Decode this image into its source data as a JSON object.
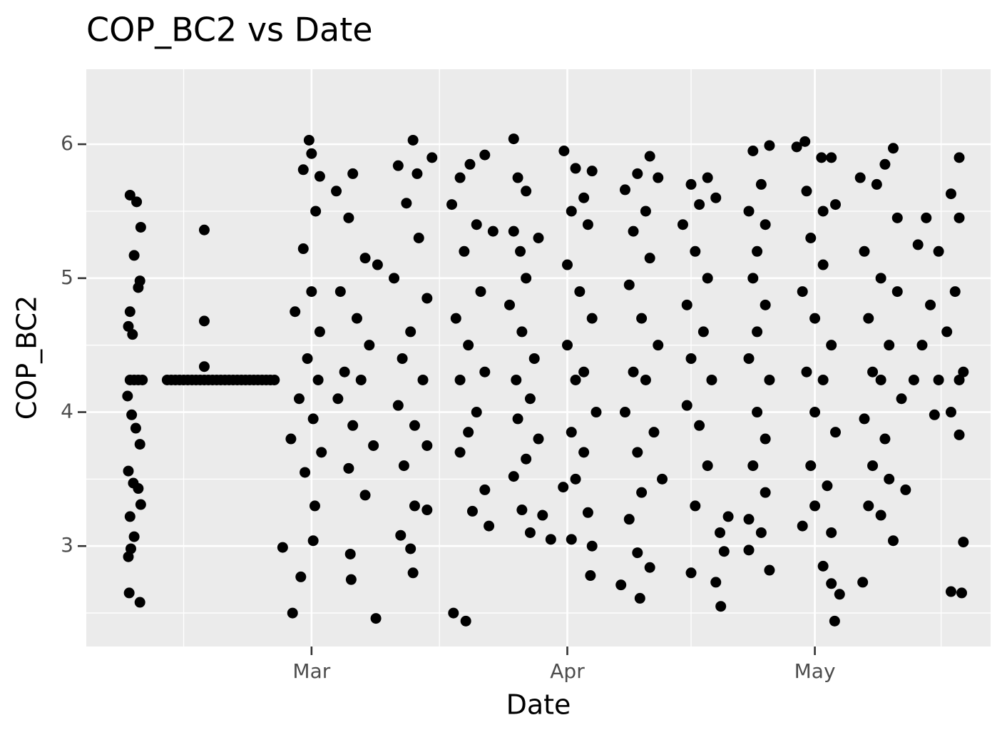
{
  "chart_data": {
    "type": "scatter",
    "title": "COP_BC2 vs Date",
    "x_label": "Date",
    "y_label": "COP_BC2",
    "color": "#000000",
    "x": [
      -22,
      -21.2,
      -20.7,
      -21.5,
      -22,
      -21,
      -20.8,
      -22.2,
      -21.7,
      -22,
      -21,
      -20.5,
      -21.5,
      -22.3,
      -21.8,
      -21.3,
      -20.8,
      -22.2,
      -21.6,
      -21,
      -20.7,
      -22,
      -21.5,
      -21.9,
      -22.2,
      -22.1,
      -20.8,
      -17.5,
      -17,
      -16.5,
      -16,
      -15.5,
      -15,
      -14.5,
      -14,
      -13.5,
      -13,
      -12.5,
      -12,
      -11.5,
      -11,
      -10.5,
      -10,
      -9.5,
      -9,
      -8.5,
      -8,
      -7.5,
      -7,
      -6.5,
      -6,
      -5.5,
      -5,
      -4.5,
      -13,
      -13,
      -13,
      -0.3,
      0,
      -1,
      1,
      0.5,
      -1,
      0,
      -2,
      1,
      -0.5,
      0.8,
      -1.5,
      0.2,
      -2.5,
      1.2,
      -0.8,
      0.4,
      -3.5,
      -1.3,
      -2.3,
      0.2,
      5,
      3,
      4.5,
      6.5,
      3.5,
      5.5,
      7,
      4,
      6,
      3.2,
      5,
      7.5,
      4.5,
      6.5,
      4.7,
      4.8,
      7.8,
      8,
      12.3,
      10.5,
      12.8,
      14.6,
      11.5,
      13,
      10,
      14,
      12,
      11,
      13.5,
      10.5,
      12.5,
      14,
      11.2,
      12.5,
      10.8,
      12,
      12.3,
      14,
      18,
      19.2,
      21,
      17,
      20,
      22,
      18.5,
      20.5,
      17.5,
      19,
      21,
      18,
      20,
      19,
      18,
      21,
      19.5,
      17.2,
      18.7,
      21.5,
      24.5,
      25,
      26,
      24.5,
      25.3,
      27.5,
      26,
      24,
      25.5,
      27,
      24.8,
      26.5,
      25,
      27.5,
      26,
      24.5,
      25.5,
      26.5,
      28,
      29,
      30.6,
      32,
      34,
      33,
      31.5,
      33.5,
      31,
      32.5,
      34,
      31,
      33,
      32,
      34.5,
      31.5,
      33,
      32,
      30.5,
      33.5,
      31.5,
      34,
      33.8,
      41,
      39.5,
      42,
      38,
      40.5,
      39,
      41,
      38.5,
      40,
      42,
      39,
      40.5,
      38,
      41.5,
      39.5,
      42.5,
      40,
      38.5,
      39.5,
      37.5,
      39.8,
      41,
      46,
      48,
      47,
      45,
      49,
      46.5,
      48,
      45.5,
      47.5,
      46,
      48.5,
      45.5,
      47,
      48,
      46.5,
      49.5,
      46,
      50,
      49.6,
      50.5,
      49,
      53.5,
      55.5,
      54.5,
      53,
      55,
      54,
      53.5,
      55,
      54,
      53,
      55.5,
      54,
      55,
      53.5,
      55,
      53,
      54.5,
      53,
      55.5,
      58.8,
      59.8,
      61.8,
      63,
      60,
      62,
      63.5,
      60.5,
      62,
      59.5,
      61,
      63,
      60,
      62,
      61,
      63.5,
      60.5,
      62.5,
      61,
      59.5,
      63,
      62,
      63,
      64,
      63.4,
      69.5,
      70.5,
      68.5,
      66.5,
      71,
      67,
      69,
      71,
      67.5,
      70,
      68,
      69,
      71.5,
      67,
      69.5,
      68,
      70,
      67.5,
      69,
      72,
      70.5,
      66.8,
      74.5,
      77.5,
      78.5,
      76,
      73.5,
      78,
      75,
      77,
      74,
      79,
      76,
      73,
      78.5,
      77.5,
      75.5,
      78.5,
      79,
      77.5,
      78.8,
      78.5
    ],
    "values": [
      5.62,
      5.57,
      5.38,
      5.17,
      4.75,
      4.93,
      4.98,
      4.64,
      4.58,
      4.24,
      4.24,
      4.24,
      4.24,
      4.12,
      3.98,
      3.88,
      3.76,
      3.56,
      3.47,
      3.43,
      3.31,
      3.22,
      3.07,
      2.98,
      2.92,
      2.65,
      2.58,
      4.24,
      4.24,
      4.24,
      4.24,
      4.24,
      4.24,
      4.24,
      4.24,
      4.24,
      4.24,
      4.24,
      4.24,
      4.24,
      4.24,
      4.24,
      4.24,
      4.24,
      4.24,
      4.24,
      4.24,
      4.24,
      4.24,
      4.24,
      4.24,
      4.24,
      4.24,
      4.24,
      5.36,
      4.68,
      4.34,
      6.03,
      5.93,
      5.81,
      5.76,
      5.5,
      5.22,
      4.9,
      4.75,
      4.6,
      4.4,
      4.24,
      4.1,
      3.95,
      3.8,
      3.7,
      3.55,
      3.3,
      2.99,
      2.77,
      2.5,
      3.04,
      5.78,
      5.65,
      5.45,
      5.15,
      4.9,
      4.7,
      4.5,
      4.3,
      4.24,
      4.1,
      3.9,
      3.75,
      3.58,
      3.38,
      2.94,
      2.75,
      2.46,
      5.1,
      6.03,
      5.84,
      5.78,
      5.9,
      5.56,
      5.3,
      5.0,
      4.85,
      4.6,
      4.4,
      4.24,
      4.05,
      3.9,
      3.75,
      3.6,
      3.3,
      3.08,
      2.98,
      2.8,
      3.27,
      5.75,
      5.85,
      5.92,
      5.55,
      5.4,
      5.35,
      5.2,
      4.9,
      4.7,
      4.5,
      4.3,
      4.24,
      4.0,
      3.85,
      3.7,
      3.42,
      3.26,
      2.5,
      2.44,
      3.15,
      6.04,
      5.75,
      5.65,
      5.35,
      5.2,
      5.3,
      5.0,
      4.8,
      4.6,
      4.4,
      4.24,
      4.1,
      3.95,
      3.8,
      3.65,
      3.52,
      3.27,
      3.1,
      3.23,
      3.05,
      5.95,
      5.82,
      5.8,
      5.6,
      5.5,
      5.4,
      5.1,
      4.9,
      4.7,
      4.5,
      4.3,
      4.24,
      4.0,
      3.85,
      3.7,
      3.5,
      3.44,
      3.25,
      3.05,
      3.0,
      2.78,
      5.91,
      5.78,
      5.75,
      5.66,
      5.5,
      5.35,
      5.15,
      4.95,
      4.7,
      4.5,
      4.3,
      4.24,
      4.0,
      3.85,
      3.7,
      3.5,
      3.4,
      3.2,
      2.95,
      2.71,
      2.61,
      2.84,
      5.7,
      5.75,
      5.55,
      5.4,
      5.6,
      5.2,
      5.0,
      4.8,
      4.6,
      4.4,
      4.24,
      4.05,
      3.9,
      3.6,
      3.3,
      3.1,
      2.8,
      2.96,
      2.55,
      3.22,
      2.73,
      5.95,
      5.99,
      5.7,
      5.5,
      5.4,
      5.2,
      5.0,
      4.8,
      4.6,
      4.4,
      4.24,
      4.0,
      3.8,
      3.6,
      3.4,
      3.2,
      3.1,
      2.97,
      2.82,
      5.98,
      6.02,
      5.9,
      5.9,
      5.65,
      5.5,
      5.55,
      5.3,
      5.1,
      4.9,
      4.7,
      4.5,
      4.3,
      4.24,
      4.0,
      3.85,
      3.6,
      3.45,
      3.3,
      3.15,
      3.1,
      2.85,
      2.72,
      2.64,
      2.44,
      5.85,
      5.97,
      5.7,
      5.75,
      5.45,
      5.2,
      5.0,
      4.9,
      4.7,
      4.5,
      4.3,
      4.24,
      4.1,
      3.95,
      3.8,
      3.6,
      3.5,
      3.3,
      3.23,
      3.42,
      3.04,
      2.73,
      5.45,
      5.63,
      5.45,
      5.2,
      5.25,
      4.9,
      4.8,
      4.6,
      4.5,
      4.3,
      4.24,
      4.24,
      4.24,
      4.0,
      3.98,
      3.83,
      3.03,
      2.66,
      2.65,
      5.9
    ],
    "xlim": [
      -27.3,
      82.3
    ],
    "xticks": [
      {
        "value": 0,
        "label": "Mar"
      },
      {
        "value": 31,
        "label": "Apr"
      },
      {
        "value": 61,
        "label": "May"
      }
    ],
    "xminor": [
      -15.5,
      15.5,
      46,
      76.3
    ],
    "ylim": [
      2.25,
      6.56
    ],
    "yticks": [
      3,
      4,
      5,
      6
    ],
    "yminor": [
      2.5,
      3.5,
      4.5,
      5.5
    ],
    "grid": true
  }
}
